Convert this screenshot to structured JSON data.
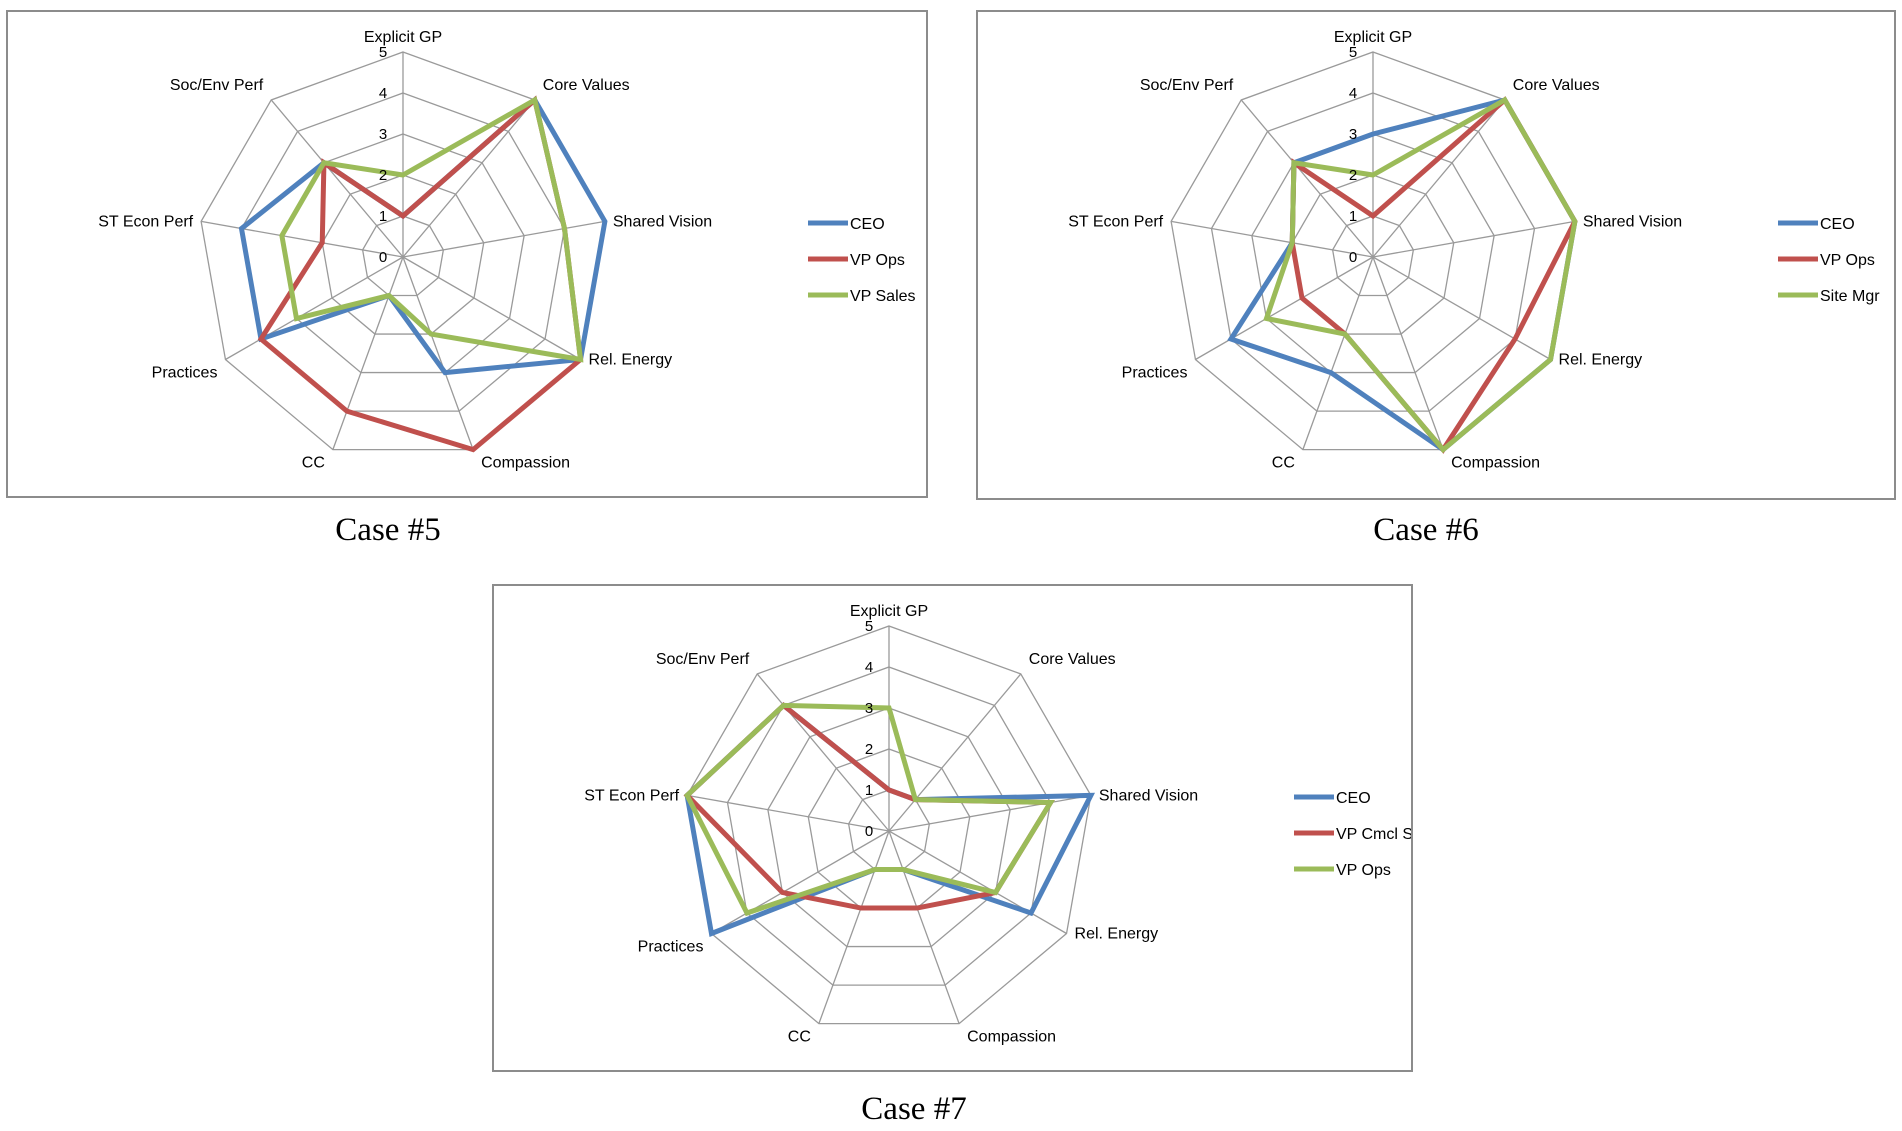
{
  "chart_data": [
    {
      "type": "radar",
      "caption": "Case #5",
      "axes": [
        "Explicit GP",
        "Core Values",
        "Shared Vision",
        "Rel. Energy",
        "Compassion",
        "CC",
        "Practices",
        "ST Econ Perf",
        "Soc/Env Perf"
      ],
      "ticks": [
        "0",
        "1",
        "2",
        "3",
        "4",
        "5"
      ],
      "rlim": [
        0,
        5
      ],
      "legend_position": "right",
      "series": [
        {
          "name": "CEO",
          "color": "#4f81bd",
          "values": [
            1,
            5,
            5,
            5,
            3,
            1,
            4,
            4,
            3
          ]
        },
        {
          "name": "VP Ops",
          "color": "#c0504d",
          "values": [
            1,
            5,
            4,
            5,
            5,
            4,
            4,
            2,
            3
          ]
        },
        {
          "name": "VP Sales",
          "color": "#9bbb59",
          "values": [
            2,
            5,
            4,
            5,
            2,
            1,
            3,
            3,
            3
          ]
        }
      ]
    },
    {
      "type": "radar",
      "caption": "Case #6",
      "axes": [
        "Explicit GP",
        "Core Values",
        "Shared Vision",
        "Rel. Energy",
        "Compassion",
        "CC",
        "Practices",
        "ST Econ Perf",
        "Soc/Env Perf"
      ],
      "ticks": [
        "0",
        "1",
        "2",
        "3",
        "4",
        "5"
      ],
      "rlim": [
        0,
        5
      ],
      "legend_position": "right",
      "series": [
        {
          "name": "CEO",
          "color": "#4f81bd",
          "values": [
            3,
            5,
            5,
            5,
            5,
            3,
            4,
            2,
            3
          ]
        },
        {
          "name": "VP Ops",
          "color": "#c0504d",
          "values": [
            1,
            5,
            5,
            4,
            5,
            2,
            2,
            2,
            3
          ]
        },
        {
          "name": "Site Mgr",
          "color": "#9bbb59",
          "values": [
            2,
            5,
            5,
            5,
            5,
            2,
            3,
            2,
            3
          ]
        }
      ]
    },
    {
      "type": "radar",
      "caption": "Case #7",
      "axes": [
        "Explicit GP",
        "Core Values",
        "Shared Vision",
        "Rel. Energy",
        "Compassion",
        "CC",
        "Practices",
        "ST Econ Perf",
        "Soc/Env Perf"
      ],
      "ticks": [
        "0",
        "1",
        "2",
        "3",
        "4",
        "5"
      ],
      "rlim": [
        0,
        5
      ],
      "legend_position": "right",
      "series": [
        {
          "name": "CEO",
          "color": "#4f81bd",
          "values": [
            1,
            1,
            5,
            4,
            1,
            1,
            5,
            5,
            4
          ]
        },
        {
          "name": "VP Cmcl Sales",
          "color": "#c0504d",
          "values": [
            1,
            1,
            4,
            3,
            2,
            2,
            3,
            5,
            4
          ]
        },
        {
          "name": "VP Ops",
          "color": "#9bbb59",
          "values": [
            3,
            1,
            4,
            3,
            1,
            1,
            4,
            5,
            4
          ]
        }
      ]
    }
  ]
}
